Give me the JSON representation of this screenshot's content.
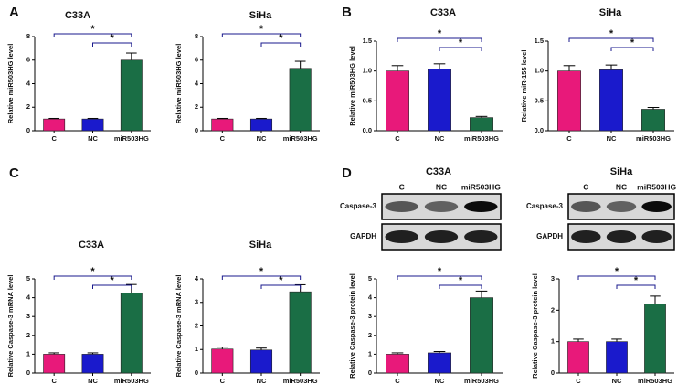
{
  "panels": [
    "A",
    "B",
    "C",
    "D"
  ],
  "blots": [
    {
      "lanes": [
        "C",
        "NC",
        "miR503HG"
      ],
      "rows": [
        "Caspase-3",
        "GAPDH"
      ]
    },
    {
      "lanes": [
        "C",
        "NC",
        "miR503HG"
      ],
      "rows": [
        "Caspase-3",
        "GAPDH"
      ]
    }
  ],
  "chart_data": [
    {
      "type": "bar",
      "title": "C33A",
      "ylabel": "Relative miR503HG level",
      "categories": [
        "C",
        "NC",
        "miR503HG"
      ],
      "values": [
        1,
        1,
        6
      ],
      "errors": [
        0.05,
        0.05,
        0.6
      ],
      "colors": [
        "#e8197a",
        "#1a1acc",
        "#1a6e45"
      ],
      "ylim": [
        0,
        8
      ],
      "yticks": [
        0,
        2,
        4,
        6,
        8
      ],
      "significance": [
        "*",
        "*"
      ]
    },
    {
      "type": "bar",
      "title": "SiHa",
      "ylabel": "Relative miR503HG level",
      "categories": [
        "C",
        "NC",
        "miR503HG"
      ],
      "values": [
        1,
        1,
        5.3
      ],
      "errors": [
        0.05,
        0.05,
        0.6
      ],
      "colors": [
        "#e8197a",
        "#1a1acc",
        "#1a6e45"
      ],
      "ylim": [
        0,
        8
      ],
      "yticks": [
        0,
        2,
        4,
        6,
        8
      ],
      "significance": [
        "*",
        "*"
      ]
    },
    {
      "type": "bar",
      "title": "C33A",
      "ylabel": "Relative miR503HG level",
      "categories": [
        "C",
        "NC",
        "miR503HG"
      ],
      "values": [
        1.0,
        1.03,
        0.22
      ],
      "errors": [
        0.09,
        0.09,
        0.02
      ],
      "colors": [
        "#e8197a",
        "#1a1acc",
        "#1a6e45"
      ],
      "ylim": [
        0,
        1.5
      ],
      "yticks": [
        {
          "value": 0,
          "label": "0.0"
        },
        {
          "value": 0.5,
          "label": "0.5"
        },
        {
          "value": 1,
          "label": "1.0"
        },
        {
          "value": 1.5,
          "label": "1.5"
        }
      ],
      "significance": [
        "*",
        "*"
      ]
    },
    {
      "type": "bar",
      "title": "SiHa",
      "ylabel": "Relative miR-155 level",
      "categories": [
        "C",
        "NC",
        "miR503HG"
      ],
      "values": [
        1.0,
        1.02,
        0.36
      ],
      "errors": [
        0.09,
        0.08,
        0.03
      ],
      "colors": [
        "#e8197a",
        "#1a1acc",
        "#1a6e45"
      ],
      "ylim": [
        0,
        1.5
      ],
      "yticks": [
        {
          "value": 0,
          "label": "0.0"
        },
        {
          "value": 0.5,
          "label": "0.5"
        },
        {
          "value": 1,
          "label": "1.0"
        },
        {
          "value": 1.5,
          "label": "1.5"
        }
      ],
      "significance": [
        "*",
        "*"
      ]
    },
    {
      "type": "bar",
      "title": "C33A",
      "ylabel": "Relative Caspase-3 mRNA level",
      "categories": [
        "C",
        "NC",
        "miR503HG"
      ],
      "values": [
        1,
        1,
        4.25
      ],
      "errors": [
        0.07,
        0.07,
        0.45
      ],
      "colors": [
        "#e8197a",
        "#1a1acc",
        "#1a6e45"
      ],
      "ylim": [
        0,
        5
      ],
      "yticks": [
        0,
        1,
        2,
        3,
        4,
        5
      ],
      "significance": [
        "*",
        "*"
      ]
    },
    {
      "type": "bar",
      "title": "SiHa",
      "ylabel": "Relative Caspase-3 mRNA level",
      "categories": [
        "C",
        "NC",
        "miR503HG"
      ],
      "values": [
        1.02,
        0.98,
        3.45
      ],
      "errors": [
        0.08,
        0.08,
        0.3
      ],
      "colors": [
        "#e8197a",
        "#1a1acc",
        "#1a6e45"
      ],
      "ylim": [
        0,
        4
      ],
      "yticks": [
        0,
        1,
        2,
        3,
        4
      ],
      "significance": [
        "*",
        "*"
      ]
    },
    {
      "type": "bar",
      "title": "C33A",
      "ylabel": "Relative Caspase-3 protein level",
      "categories": [
        "C",
        "NC",
        "miR503HG"
      ],
      "values": [
        1,
        1.07,
        4
      ],
      "errors": [
        0.07,
        0.07,
        0.35
      ],
      "colors": [
        "#e8197a",
        "#1a1acc",
        "#1a6e45"
      ],
      "ylim": [
        0,
        5
      ],
      "yticks": [
        0,
        1,
        2,
        3,
        4,
        5
      ],
      "significance": [
        "*",
        "*"
      ]
    },
    {
      "type": "bar",
      "title": "SiHa",
      "ylabel": "Relative Caspase-3 protein level",
      "categories": [
        "C",
        "NC",
        "miR503HG"
      ],
      "values": [
        1,
        1,
        2.2
      ],
      "errors": [
        0.08,
        0.08,
        0.25
      ],
      "colors": [
        "#e8197a",
        "#1a1acc",
        "#1a6e45"
      ],
      "ylim": [
        0,
        3
      ],
      "yticks": [
        0,
        1,
        2,
        3
      ],
      "significance": [
        "*",
        "*"
      ]
    }
  ]
}
